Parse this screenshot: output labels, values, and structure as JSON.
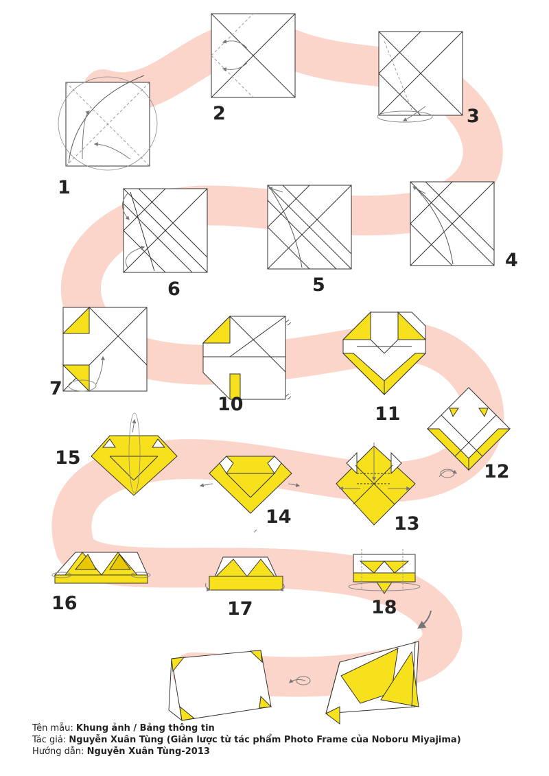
{
  "steps": [
    "1",
    "2",
    "3",
    "4",
    "5",
    "6",
    "7",
    "10",
    "11",
    "12",
    "13",
    "14",
    "15",
    "16",
    "17",
    "18"
  ],
  "colors": {
    "path": "#fbd5c9",
    "paper_yellow": "#f7e01c",
    "paper_yellow_dark": "#e9c800",
    "line": "#333333",
    "dashed": "#9a9a9a",
    "arrow": "#777777"
  },
  "icons": [
    "turn-over-icon",
    "arrow-down-icon"
  ],
  "credits": {
    "name_label": "Tên mẫu: ",
    "name_value": "Khung ảnh / Bảng thông tin",
    "author_label": "Tác giả: ",
    "author_value": "Nguyễn Xuân Tùng (Giản lược từ tác phẩm Photo Frame của Noboru Miyajima)",
    "guide_label": "Hướng dẫn: ",
    "guide_value": "Nguyễn Xuân Tùng-2013"
  }
}
